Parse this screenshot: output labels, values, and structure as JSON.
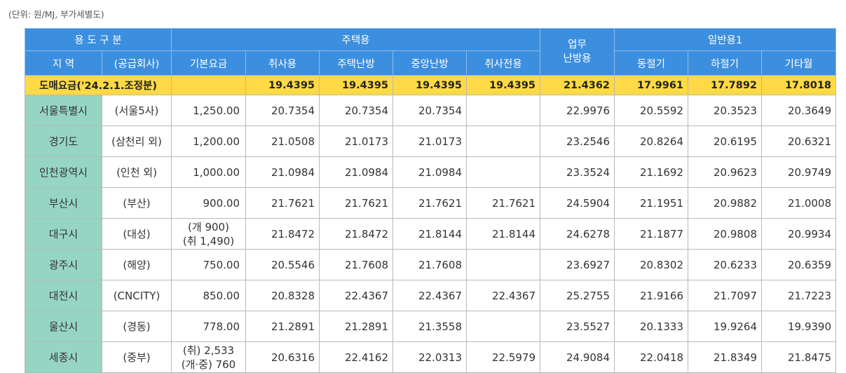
{
  "unit_note": "(단위: 원/MJ, 부가세별도)",
  "header": {
    "usage_category": "용 도 구 분",
    "residential": "주택용",
    "business_heating_line1": "업무",
    "business_heating_line2": "난방용",
    "general": "일반용1",
    "region": "지 역",
    "supplier": "(공급회사)",
    "base_fee": "기본요금",
    "cooking": "취사용",
    "residential_heating": "주택난방",
    "central_heating": "중앙난방",
    "cooking_only": "취사전용",
    "winter": "동절기",
    "summer": "하절기",
    "other_months": "기타월"
  },
  "wholesale": {
    "label": "도매요금('24.2.1.조정분)",
    "cooking": "19.4395",
    "residential_heating": "19.4395",
    "central_heating": "19.4395",
    "cooking_only": "19.4395",
    "business_heating": "21.4362",
    "winter": "17.9961",
    "summer": "17.7892",
    "other_months": "17.8018"
  },
  "rows": [
    {
      "region": "서울특별시",
      "supplier": "(서울5사)",
      "base_lines": [
        "1,250.00"
      ],
      "cooking": "20.7354",
      "residential_heating": "20.7354",
      "central_heating": "20.7354",
      "cooking_only": "",
      "business_heating": "22.9976",
      "winter": "20.5592",
      "summer": "20.3523",
      "other_months": "20.3649"
    },
    {
      "region": "경기도",
      "supplier": "(삼천리 외)",
      "base_lines": [
        "1,200.00"
      ],
      "cooking": "21.0508",
      "residential_heating": "21.0173",
      "central_heating": "21.0173",
      "cooking_only": "",
      "business_heating": "23.2546",
      "winter": "20.8264",
      "summer": "20.6195",
      "other_months": "20.6321"
    },
    {
      "region": "인천광역시",
      "supplier": "(인천 외)",
      "base_lines": [
        "1,000.00"
      ],
      "cooking": "21.0984",
      "residential_heating": "21.0984",
      "central_heating": "21.0984",
      "cooking_only": "",
      "business_heating": "23.3524",
      "winter": "21.1692",
      "summer": "20.9623",
      "other_months": "20.9749"
    },
    {
      "region": "부산시",
      "supplier": "(부산)",
      "base_lines": [
        "900.00"
      ],
      "cooking": "21.7621",
      "residential_heating": "21.7621",
      "central_heating": "21.7621",
      "cooking_only": "21.7621",
      "business_heating": "24.5904",
      "winter": "21.1951",
      "summer": "20.9882",
      "other_months": "21.0008"
    },
    {
      "region": "대구시",
      "supplier": "(대성)",
      "base_lines": [
        "(개 900)",
        "(취 1,490)"
      ],
      "cooking": "21.8472",
      "residential_heating": "21.8472",
      "central_heating": "21.8144",
      "cooking_only": "21.8144",
      "business_heating": "24.6278",
      "winter": "21.1877",
      "summer": "20.9808",
      "other_months": "20.9934"
    },
    {
      "region": "광주시",
      "supplier": "(해양)",
      "base_lines": [
        "750.00"
      ],
      "cooking": "20.5546",
      "residential_heating": "21.7608",
      "central_heating": "21.7608",
      "cooking_only": "",
      "business_heating": "23.6927",
      "winter": "20.8302",
      "summer": "20.6233",
      "other_months": "20.6359"
    },
    {
      "region": "대전시",
      "supplier": "(CNCITY)",
      "base_lines": [
        "850.00"
      ],
      "cooking": "20.8328",
      "residential_heating": "22.4367",
      "central_heating": "22.4367",
      "cooking_only": "22.4367",
      "business_heating": "25.2755",
      "winter": "21.9166",
      "summer": "21.7097",
      "other_months": "21.7223"
    },
    {
      "region": "울산시",
      "supplier": "(경동)",
      "base_lines": [
        "778.00"
      ],
      "cooking": "21.2891",
      "residential_heating": "21.2891",
      "central_heating": "21.3558",
      "cooking_only": "",
      "business_heating": "23.5527",
      "winter": "20.1333",
      "summer": "19.9264",
      "other_months": "19.9390"
    },
    {
      "region": "세종시",
      "supplier": "(중부)",
      "base_lines": [
        "(취) 2,533",
        "(개·중) 760"
      ],
      "cooking": "20.6316",
      "residential_heating": "22.4162",
      "central_heating": "22.0313",
      "cooking_only": "22.5979",
      "business_heating": "24.9084",
      "winter": "22.0418",
      "summer": "21.8349",
      "other_months": "21.8475"
    }
  ]
}
